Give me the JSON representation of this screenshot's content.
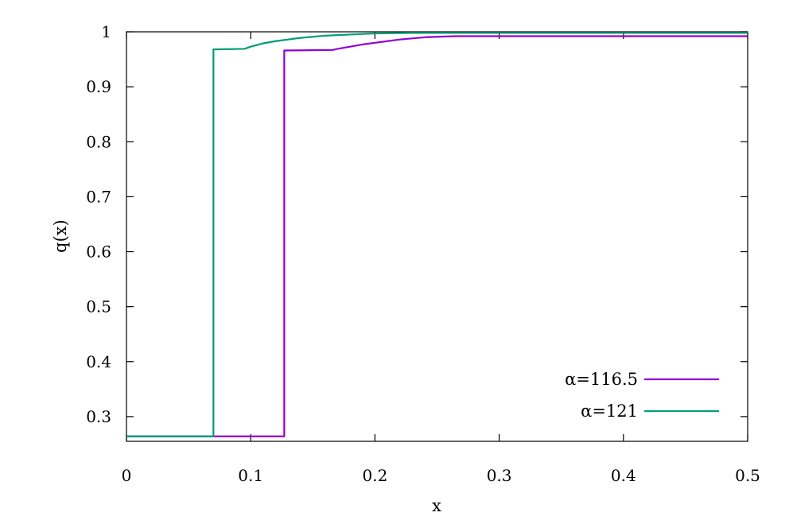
{
  "chart_data": {
    "type": "line",
    "xlabel": "x",
    "ylabel": "q(x)",
    "xlim": [
      0,
      0.5
    ],
    "ylim": [
      0.255,
      1.0
    ],
    "xticks": [
      "0",
      "0.1",
      "0.2",
      "0.3",
      "0.4",
      "0.5"
    ],
    "yticks": [
      "0.3",
      "0.4",
      "0.5",
      "0.6",
      "0.7",
      "0.8",
      "0.9",
      "1"
    ],
    "grid": false,
    "legend_position": "bottom-right",
    "series": [
      {
        "name": "α=116.5",
        "color": "#9400d3",
        "points": [
          [
            0,
            0.264
          ],
          [
            0.127,
            0.264
          ],
          [
            0.127,
            0.966
          ],
          [
            0.166,
            0.967
          ],
          [
            0.17,
            0.969
          ],
          [
            0.18,
            0.973
          ],
          [
            0.19,
            0.977
          ],
          [
            0.2,
            0.98
          ],
          [
            0.21,
            0.983
          ],
          [
            0.22,
            0.986
          ],
          [
            0.23,
            0.988
          ],
          [
            0.24,
            0.99
          ],
          [
            0.25,
            0.991
          ],
          [
            0.265,
            0.992
          ],
          [
            0.5,
            0.992
          ]
        ]
      },
      {
        "name": "α=121",
        "color": "#009e73",
        "points": [
          [
            0,
            0.264
          ],
          [
            0.07,
            0.264
          ],
          [
            0.07,
            0.968
          ],
          [
            0.095,
            0.969
          ],
          [
            0.1,
            0.973
          ],
          [
            0.11,
            0.979
          ],
          [
            0.12,
            0.983
          ],
          [
            0.13,
            0.986
          ],
          [
            0.14,
            0.989
          ],
          [
            0.15,
            0.991
          ],
          [
            0.16,
            0.993
          ],
          [
            0.18,
            0.995
          ],
          [
            0.2,
            0.997
          ],
          [
            0.23,
            0.998
          ],
          [
            0.5,
            0.998
          ]
        ]
      }
    ]
  }
}
